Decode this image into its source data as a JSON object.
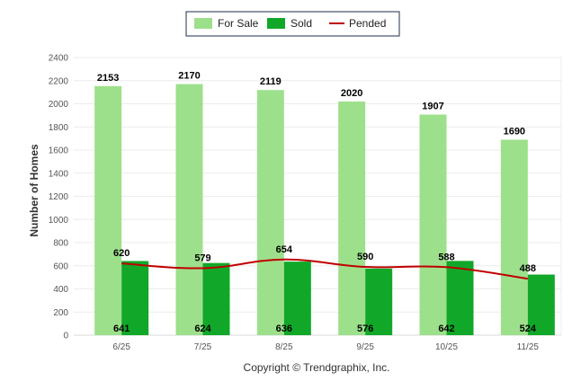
{
  "chart_data": {
    "type": "bar",
    "categories": [
      "6/25",
      "7/25",
      "8/25",
      "9/25",
      "10/25",
      "11/25"
    ],
    "series": [
      {
        "name": "For Sale",
        "kind": "bar",
        "color": "#9de08b",
        "values": [
          2153,
          2170,
          2119,
          2020,
          1907,
          1690
        ],
        "labels": [
          "2153",
          "2170",
          "2119",
          "2020",
          "1907",
          "1690"
        ]
      },
      {
        "name": "Sold",
        "kind": "bar",
        "color": "#11a829",
        "values": [
          641,
          624,
          636,
          576,
          642,
          524
        ],
        "labels": [
          "641",
          "624",
          "636",
          "576",
          "642",
          "524"
        ]
      },
      {
        "name": "Pended",
        "kind": "line",
        "color": "#c00000",
        "values": [
          620,
          579,
          654,
          590,
          588,
          488
        ],
        "labels": [
          "620",
          "579",
          "654",
          "590",
          "588",
          "488"
        ]
      }
    ],
    "ylabel": "Number of Homes",
    "ylim": [
      0,
      2400
    ],
    "yticks": [
      0,
      200,
      400,
      600,
      800,
      1000,
      1200,
      1400,
      1600,
      1800,
      2000,
      2200,
      2400
    ],
    "ytick_labels": [
      "0",
      "200",
      "400",
      "600",
      "800",
      "1000",
      "1200",
      "1400",
      "1600",
      "1800",
      "2000",
      "2200",
      "2400"
    ],
    "grid": true,
    "legend_position": "top-center"
  },
  "footer": {
    "copyright": "Copyright © Trendgraphix, Inc."
  }
}
